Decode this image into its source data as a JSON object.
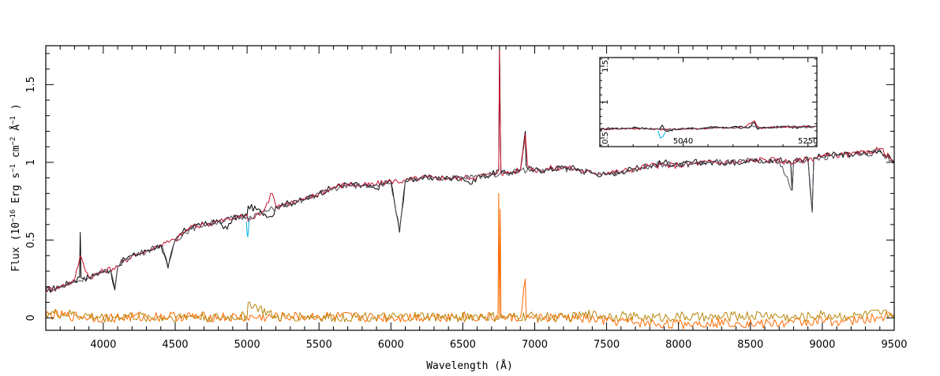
{
  "chart_data": {
    "type": "line",
    "title": "",
    "xlabel": "Wavelength (Å)",
    "ylabel": "Flux (10^-16 Erg s^-1 cm^-2 Å^-1)",
    "ylabel_parts": {
      "prefix": "Flux (10",
      "exp1": "−16",
      "mid1": " Erg s",
      "exp2": "−1",
      "mid2": " cm",
      "exp3": "−2",
      "mid3": " Å",
      "exp4": "−1",
      "suffix": " )"
    },
    "xlim": [
      3600,
      9500
    ],
    "ylim": [
      -0.08,
      1.75
    ],
    "grid": false,
    "x_ticks": [
      4000,
      4500,
      5000,
      5500,
      6000,
      6500,
      7000,
      7500,
      8000,
      8500,
      9000,
      9500
    ],
    "x_tick_labels": [
      "4000",
      "4500",
      "5000",
      "5500",
      "6000",
      "6500",
      "7000",
      "7500",
      "8000",
      "8500",
      "9000",
      "9500"
    ],
    "y_ticks": [
      0,
      0.5,
      1,
      1.5
    ],
    "y_tick_labels": [
      "0",
      "0.5",
      "1",
      "1.5"
    ],
    "series": [
      {
        "role": "observed spectrum (black)",
        "color": "#000000",
        "x": [
          3600,
          3700,
          3800,
          3835,
          3840,
          3845,
          3900,
          3950,
          4000,
          4050,
          4080,
          4100,
          4150,
          4200,
          4250,
          4300,
          4350,
          4400,
          4450,
          4500,
          4550,
          4600,
          4650,
          4700,
          4800,
          4861,
          4900,
          5000,
          5007,
          5100,
          5175,
          5200,
          5300,
          5400,
          5500,
          5600,
          5700,
          5800,
          5890,
          5950,
          6000,
          6060,
          6100,
          6200,
          6300,
          6400,
          6500,
          6563,
          6600,
          6700,
          6750,
          6755,
          6760,
          6765,
          6800,
          6850,
          6900,
          6935,
          6940,
          6950,
          7000,
          7100,
          7200,
          7300,
          7400,
          7500,
          7600,
          7700,
          7800,
          7900,
          8000,
          8100,
          8200,
          8300,
          8400,
          8500,
          8600,
          8700,
          8780,
          8790,
          8800,
          8850,
          8900,
          8930,
          8940,
          9000,
          9100,
          9200,
          9300,
          9400,
          9500
        ],
        "y": [
          0.18,
          0.2,
          0.24,
          0.26,
          0.55,
          0.26,
          0.26,
          0.28,
          0.3,
          0.31,
          0.18,
          0.33,
          0.38,
          0.4,
          0.41,
          0.43,
          0.45,
          0.47,
          0.32,
          0.5,
          0.55,
          0.58,
          0.6,
          0.6,
          0.62,
          0.57,
          0.64,
          0.66,
          0.72,
          0.68,
          0.65,
          0.72,
          0.74,
          0.76,
          0.8,
          0.84,
          0.86,
          0.85,
          0.83,
          0.86,
          0.88,
          0.55,
          0.88,
          0.9,
          0.9,
          0.9,
          0.9,
          0.86,
          0.91,
          0.92,
          0.95,
          1.75,
          1.3,
          0.93,
          0.93,
          0.94,
          0.95,
          1.2,
          0.98,
          0.96,
          0.95,
          0.95,
          0.97,
          0.96,
          0.93,
          0.92,
          0.94,
          0.96,
          0.98,
          1.0,
          0.98,
          1.0,
          1.0,
          1.0,
          1.0,
          1.02,
          1.0,
          1.02,
          1.0,
          0.82,
          1.01,
          1.02,
          1.03,
          0.68,
          1.03,
          1.04,
          1.05,
          1.05,
          1.06,
          1.08,
          1.0
        ]
      },
      {
        "role": "model fit (red)",
        "color": "#c8102e",
        "x": [
          3600,
          3700,
          3800,
          3840,
          3900,
          4000,
          4100,
          4200,
          4300,
          4400,
          4500,
          4600,
          4700,
          4800,
          4900,
          5000,
          5007,
          5100,
          5175,
          5200,
          5300,
          5400,
          5500,
          5600,
          5700,
          5800,
          5900,
          6000,
          6100,
          6200,
          6300,
          6400,
          6500,
          6600,
          6700,
          6750,
          6755,
          6760,
          6765,
          6800,
          6900,
          6935,
          6950,
          7000,
          7200,
          7400,
          7600,
          7800,
          8000,
          8200,
          8400,
          8600,
          8800,
          9000,
          9200,
          9300,
          9400,
          9500
        ],
        "y": [
          0.18,
          0.2,
          0.24,
          0.4,
          0.26,
          0.3,
          0.33,
          0.4,
          0.43,
          0.47,
          0.5,
          0.58,
          0.6,
          0.62,
          0.64,
          0.66,
          0.62,
          0.68,
          0.8,
          0.72,
          0.74,
          0.76,
          0.8,
          0.84,
          0.86,
          0.85,
          0.86,
          0.88,
          0.88,
          0.9,
          0.9,
          0.9,
          0.9,
          0.91,
          0.92,
          0.95,
          1.72,
          1.28,
          0.93,
          0.93,
          0.95,
          1.18,
          0.98,
          0.95,
          0.97,
          0.93,
          0.94,
          0.98,
          0.98,
          1.0,
          1.0,
          1.02,
          1.0,
          1.04,
          1.05,
          1.06,
          1.09,
          1.0
        ]
      },
      {
        "role": "absorption correction (cyan)",
        "color": "#00b3e6",
        "x": [
          4995,
          5000,
          5005,
          5010,
          5015
        ],
        "y": [
          0.62,
          0.54,
          0.52,
          0.58,
          0.64
        ]
      },
      {
        "role": "fit overlay (dark grey)",
        "color": "#4a4a55",
        "x": [
          3600,
          3700,
          3800,
          3900,
          4000,
          4050,
          4080,
          4100,
          4150,
          4200,
          4300,
          4400,
          4450,
          4500,
          4600,
          4700,
          4800,
          4900,
          5000,
          5100,
          5200,
          5300,
          5400,
          5500,
          5600,
          5700,
          5800,
          5900,
          6000,
          6060,
          6100,
          6200,
          6300,
          6400,
          6500,
          6600,
          6700,
          6760,
          6800,
          6900,
          7000,
          7100,
          7200,
          7300,
          7400,
          7500,
          7600,
          7700,
          7800,
          7900,
          8000,
          8100,
          8200,
          8300,
          8400,
          8500,
          8600,
          8700,
          8790,
          8800,
          8900,
          8930,
          8940,
          9000,
          9100,
          9200,
          9300,
          9400,
          9500
        ],
        "y": [
          0.17,
          0.2,
          0.23,
          0.26,
          0.29,
          0.31,
          0.19,
          0.33,
          0.38,
          0.4,
          0.43,
          0.47,
          0.33,
          0.5,
          0.57,
          0.6,
          0.62,
          0.64,
          0.65,
          0.67,
          0.71,
          0.73,
          0.76,
          0.8,
          0.83,
          0.85,
          0.85,
          0.86,
          0.87,
          0.56,
          0.88,
          0.89,
          0.9,
          0.9,
          0.9,
          0.91,
          0.92,
          0.93,
          0.93,
          0.95,
          0.95,
          0.95,
          0.96,
          0.95,
          0.93,
          0.92,
          0.94,
          0.96,
          0.98,
          0.99,
          0.98,
          0.99,
          1.0,
          1.0,
          1.0,
          1.01,
          1.0,
          1.01,
          0.82,
          1.01,
          1.02,
          0.68,
          1.02,
          1.03,
          1.04,
          1.05,
          1.05,
          1.07,
          1.0
        ]
      },
      {
        "role": "residual / sky (orange)",
        "color": "#ff6a00",
        "x": [
          3600,
          4000,
          4500,
          5000,
          5500,
          6000,
          6500,
          6745,
          6750,
          6755,
          6760,
          6765,
          6770,
          6900,
          6935,
          6940,
          7000,
          7300,
          7500,
          7700,
          7900,
          8000,
          8200,
          8400,
          8600,
          8800,
          9000,
          9200,
          9400,
          9500
        ],
        "y": [
          0.02,
          0.0,
          0.01,
          0.0,
          0.01,
          0.0,
          0.01,
          0.0,
          0.8,
          0.02,
          0.7,
          0.0,
          0.0,
          0.0,
          0.25,
          0.0,
          0.0,
          0.0,
          -0.02,
          -0.03,
          -0.04,
          -0.04,
          -0.03,
          -0.03,
          -0.04,
          -0.03,
          -0.02,
          -0.02,
          0.0,
          0.02
        ]
      },
      {
        "role": "noise / error (olive)",
        "color": "#b8860b",
        "x": [
          3600,
          3800,
          4000,
          4200,
          4400,
          4600,
          4800,
          5000,
          5007,
          5200,
          5400,
          5600,
          5800,
          6000,
          6200,
          6400,
          6600,
          6800,
          7000,
          7200,
          7400,
          7600,
          7800,
          8000,
          8200,
          8400,
          8600,
          8800,
          9000,
          9200,
          9400,
          9500
        ],
        "y": [
          0.03,
          0.02,
          0.0,
          0.01,
          0.0,
          0.01,
          0.0,
          0.01,
          0.1,
          0.0,
          0.01,
          0.0,
          0.01,
          0.0,
          0.01,
          0.0,
          0.01,
          0.0,
          0.01,
          0.0,
          0.02,
          0.01,
          0.0,
          0.01,
          0.0,
          0.01,
          0.02,
          0.0,
          0.02,
          0.01,
          0.03,
          0.02
        ]
      }
    ],
    "inset": {
      "type": "line",
      "xlim": [
        4900,
        5265
      ],
      "ylim": [
        0.38,
        1.62
      ],
      "x_ticks": [
        5040,
        5250
      ],
      "x_tick_labels": [
        "5040",
        "5250"
      ],
      "y_ticks": [
        0.5,
        1,
        1.5
      ],
      "y_tick_labels": [
        "0.5",
        "1",
        "1.5"
      ],
      "series": [
        {
          "role": "observed spectrum (black)",
          "color": "#000000",
          "x": [
            4900,
            4920,
            4940,
            4960,
            4980,
            5000,
            5005,
            5010,
            5030,
            5050,
            5070,
            5090,
            5110,
            5130,
            5150,
            5160,
            5165,
            5170,
            5190,
            5210,
            5230,
            5250,
            5265
          ],
          "y": [
            0.62,
            0.64,
            0.63,
            0.65,
            0.63,
            0.62,
            0.68,
            0.6,
            0.62,
            0.64,
            0.63,
            0.65,
            0.64,
            0.66,
            0.64,
            0.72,
            0.62,
            0.64,
            0.65,
            0.66,
            0.64,
            0.67,
            0.66
          ]
        },
        {
          "role": "model fit (red)",
          "color": "#c8102e",
          "x": [
            4900,
            4940,
            4980,
            5000,
            5020,
            5060,
            5100,
            5140,
            5160,
            5165,
            5170,
            5210,
            5250,
            5265
          ],
          "y": [
            0.62,
            0.63,
            0.63,
            0.62,
            0.62,
            0.63,
            0.64,
            0.64,
            0.74,
            0.66,
            0.64,
            0.65,
            0.66,
            0.66
          ]
        },
        {
          "role": "absorption correction (cyan)",
          "color": "#00b3e6",
          "x": [
            4998,
            5002,
            5006,
            5010
          ],
          "y": [
            0.6,
            0.5,
            0.52,
            0.58
          ]
        },
        {
          "role": "fit overlay (dark grey)",
          "color": "#4a4a55",
          "x": [
            4900,
            4920,
            4940,
            4960,
            4980,
            5000,
            5020,
            5040,
            5060,
            5080,
            5100,
            5120,
            5140,
            5160,
            5180,
            5200,
            5220,
            5240,
            5265
          ],
          "y": [
            0.62,
            0.63,
            0.63,
            0.64,
            0.63,
            0.62,
            0.62,
            0.63,
            0.63,
            0.64,
            0.64,
            0.65,
            0.64,
            0.66,
            0.64,
            0.65,
            0.66,
            0.65,
            0.66
          ]
        }
      ]
    }
  }
}
